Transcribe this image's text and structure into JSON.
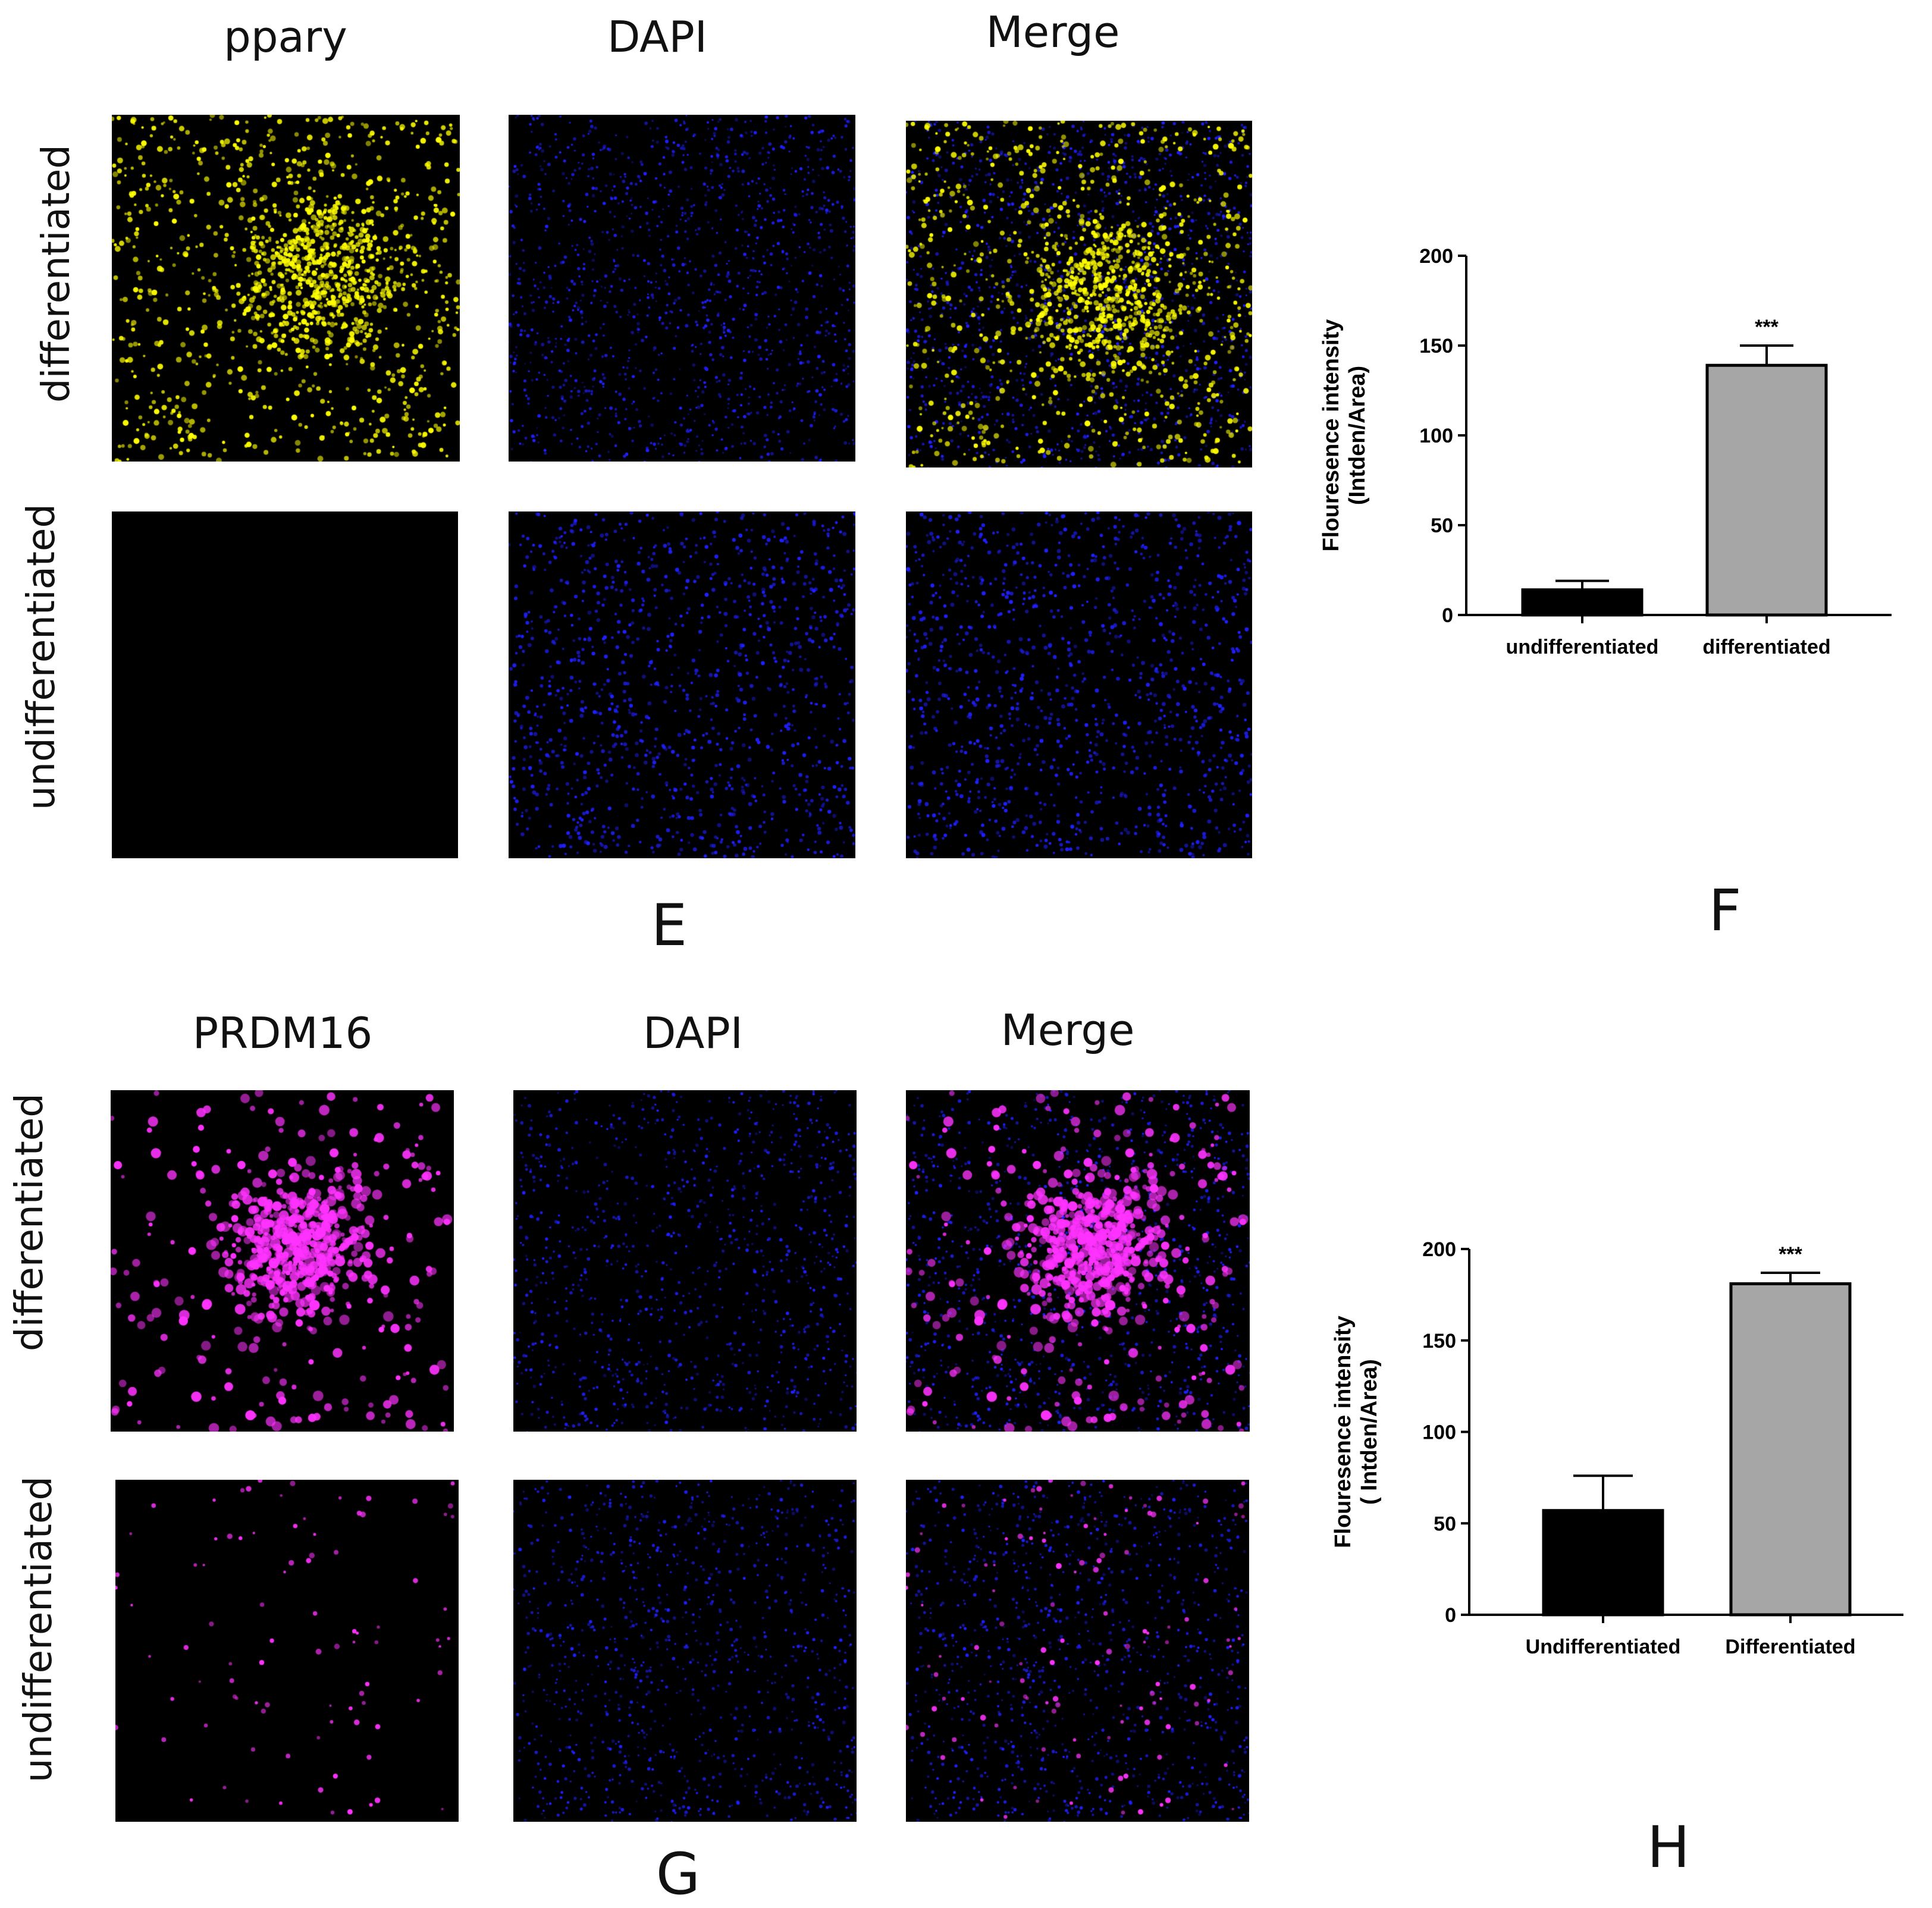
{
  "section_E": {
    "letter": "E",
    "columns": [
      "ppary",
      "DAPI",
      "Merge"
    ],
    "rows": [
      "differentiated",
      "undifferentiated"
    ],
    "marker_color": "#ffff00"
  },
  "section_G": {
    "letter": "G",
    "columns": [
      "PRDM16",
      "DAPI",
      "Merge"
    ],
    "rows": [
      "differentiated",
      "undifferentiated"
    ],
    "marker_color": "#ff33ff"
  },
  "colors": {
    "dapi": "#2020ff",
    "bar_black": "#000000",
    "bar_gray": "#a6a6a6"
  },
  "chart_F": {
    "letter": "F"
  },
  "chart_H": {
    "letter": "H"
  },
  "chart_data": [
    {
      "type": "bar",
      "categories": [
        "undifferentiated",
        "differentiated"
      ],
      "values": [
        14,
        139
      ],
      "errors": [
        5,
        11
      ],
      "significance": [
        "",
        "***"
      ],
      "ylabel": "Flouresence intensity\n(Intden/Area)",
      "ylim": [
        0,
        200
      ],
      "yticks": [
        0,
        50,
        100,
        150,
        200
      ],
      "bar_colors": [
        "#000000",
        "#a6a6a6"
      ],
      "grid": false
    },
    {
      "type": "bar",
      "categories": [
        "Undifferentiated",
        "Differentiated"
      ],
      "values": [
        57,
        181
      ],
      "errors": [
        19,
        6
      ],
      "significance": [
        "",
        "***"
      ],
      "ylabel": "Flouresence intensity\n( Intden/Area)",
      "ylim": [
        0,
        200
      ],
      "yticks": [
        0,
        50,
        100,
        150,
        200
      ],
      "bar_colors": [
        "#000000",
        "#a6a6a6"
      ],
      "grid": false
    }
  ]
}
